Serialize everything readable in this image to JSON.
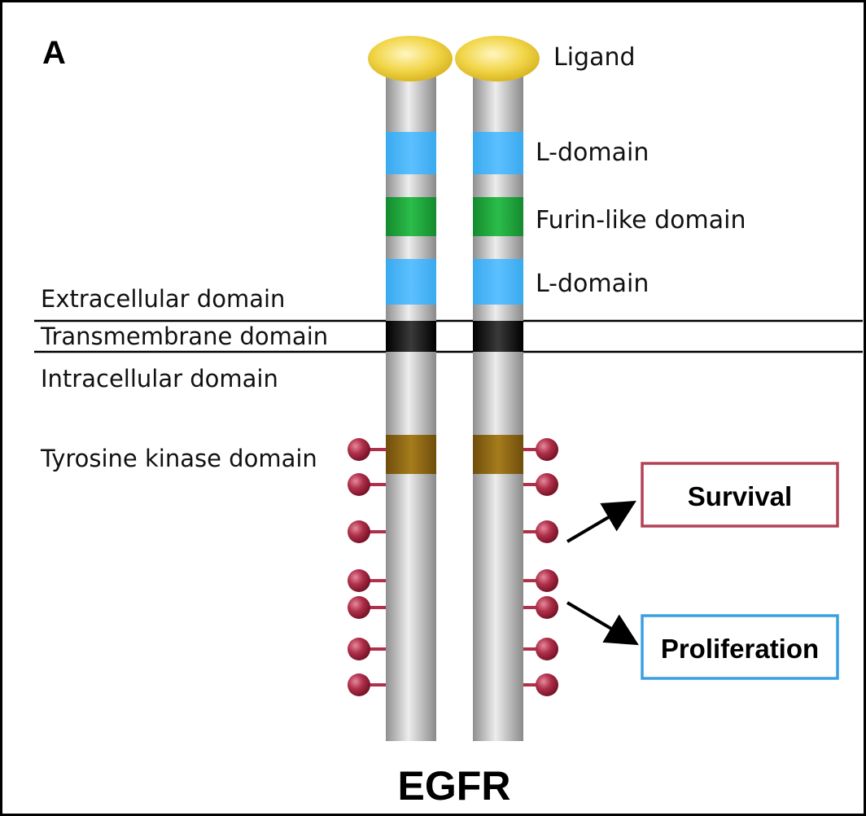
{
  "panel_letter": "A",
  "title": "EGFR",
  "labels": {
    "ligand": "Ligand",
    "l_domain_top": "L-domain",
    "furin": "Furin-like domain",
    "l_domain_bottom": "L-domain",
    "extracellular": "Extracellular domain",
    "transmembrane": "Transmembrane domain",
    "intracellular": "Intracellular domain",
    "tyrosine_kinase": "Tyrosine kinase domain"
  },
  "outcomes": {
    "survival": "Survival",
    "proliferation": "Proliferation"
  },
  "colors": {
    "receptor_gray": "#c8c8c8",
    "ligand_yellow": "#f2d64b",
    "l_domain_blue": "#3aa9ee",
    "furin_green": "#1aa33a",
    "transmembrane_black": "#111111",
    "kinase_brown": "#8a6414",
    "phospho_red": "#b0304a",
    "survival_border": "#b24255",
    "proliferation_border": "#3a9fe2"
  }
}
